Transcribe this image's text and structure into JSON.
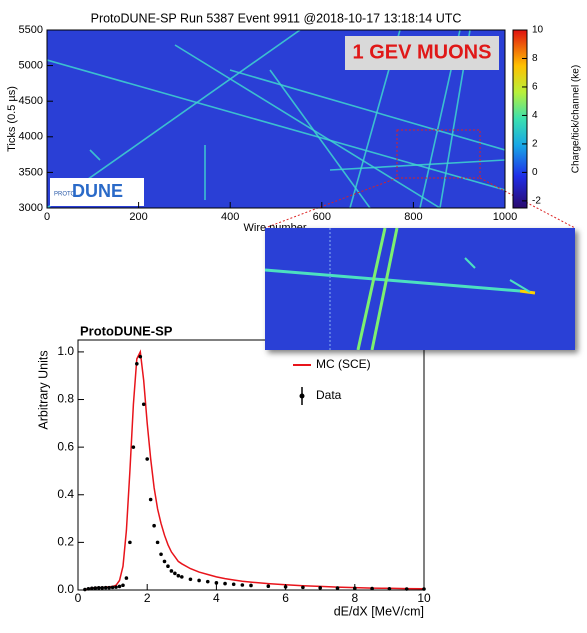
{
  "chart_data": [
    {
      "type": "image",
      "title": "ProtoDUNE-SP Run 5387 Event 9911 @2018-10-17 13:18:14 UTC",
      "x_label": "Wire number",
      "y_label": "Ticks (0.5 µs)",
      "xlim": [
        0,
        1000
      ],
      "xticks": [
        0,
        200,
        400,
        600,
        800,
        1000
      ],
      "ylim": [
        3000,
        5500
      ],
      "yticks": [
        3000,
        3500,
        4000,
        4500,
        5000,
        5500
      ],
      "colorbar_label": "Charge/tick/channel (ke)",
      "clim": [
        -2.5,
        10
      ],
      "cticks": [
        -2,
        0,
        2,
        4,
        6,
        8,
        10
      ],
      "annotation": "1 GEV MUONS",
      "logo": {
        "small": "PROTO",
        "large": "DUNE"
      },
      "color": "#2a3fd6"
    },
    {
      "type": "line",
      "title": "ProtoDUNE-SP",
      "x_label": "dE/dX [MeV/cm]",
      "y_label": "Arbitrary Units",
      "xlim": [
        0,
        10
      ],
      "xticks": [
        0,
        2,
        4,
        6,
        8,
        10
      ],
      "ylim": [
        0,
        1.05
      ],
      "yticks": [
        {
          "value": 0,
          "label": "0.0"
        },
        0.2,
        0.4,
        0.6,
        0.8,
        {
          "value": 1,
          "label": "1.0"
        }
      ],
      "x": [
        0.2,
        0.3,
        0.4,
        0.5,
        0.6,
        0.7,
        0.8,
        0.9,
        1.0,
        1.1,
        1.2,
        1.3,
        1.4,
        1.5,
        1.6,
        1.7,
        1.8,
        1.9,
        2.0,
        2.1,
        2.2,
        2.3,
        2.4,
        2.5,
        2.6,
        2.7,
        2.8,
        2.9,
        3.0,
        3.25,
        3.5,
        3.75,
        4.0,
        4.25,
        4.5,
        4.75,
        5.0,
        5.5,
        6.0,
        6.5,
        7.0,
        7.5,
        8.0,
        8.5,
        9.0,
        9.5,
        10.0
      ],
      "series": [
        {
          "name": "MC (SCE)",
          "color": "#e8141b",
          "style": "line",
          "values": [
            0,
            0.005,
            0.008,
            0.01,
            0.01,
            0.01,
            0.012,
            0.013,
            0.015,
            0.02,
            0.04,
            0.1,
            0.25,
            0.5,
            0.78,
            0.97,
            1.0,
            0.88,
            0.7,
            0.55,
            0.43,
            0.34,
            0.28,
            0.23,
            0.19,
            0.16,
            0.14,
            0.12,
            0.11,
            0.09,
            0.075,
            0.065,
            0.055,
            0.048,
            0.042,
            0.037,
            0.033,
            0.027,
            0.022,
            0.018,
            0.015,
            0.012,
            0.01,
            0.008,
            0.007,
            0.006,
            0.005
          ]
        },
        {
          "name": "Data",
          "color": "#000000",
          "style": "points",
          "values": [
            0.002,
            0.005,
            0.007,
            0.008,
            0.009,
            0.009,
            0.01,
            0.01,
            0.011,
            0.012,
            0.015,
            0.02,
            0.05,
            0.2,
            0.6,
            0.95,
            0.98,
            0.78,
            0.55,
            0.38,
            0.27,
            0.2,
            0.15,
            0.12,
            0.1,
            0.08,
            0.07,
            0.06,
            0.055,
            0.045,
            0.04,
            0.035,
            0.03,
            0.027,
            0.024,
            0.021,
            0.019,
            0.016,
            0.013,
            0.011,
            0.009,
            0.008,
            0.007,
            0.006,
            0.005,
            0.004,
            0.004
          ]
        }
      ],
      "legend": "upper right"
    }
  ]
}
